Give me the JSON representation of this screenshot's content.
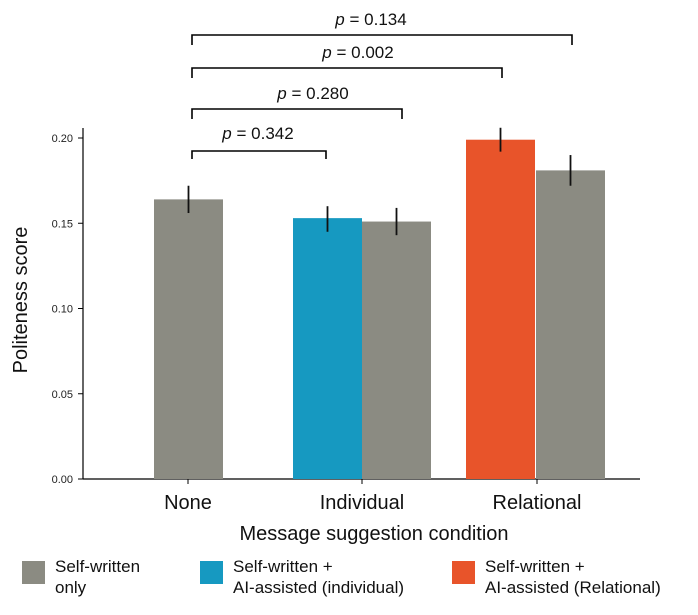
{
  "chart_data": {
    "type": "bar",
    "title": "",
    "xlabel": "Message suggestion condition",
    "ylabel": "Politeness score",
    "ylim": [
      0,
      0.205
    ],
    "yticks": [
      "0.00",
      "0.05",
      "0.10",
      "0.15",
      "0.20"
    ],
    "categories": [
      "None",
      "Individual",
      "Relational"
    ],
    "series": [
      {
        "name": "Self-written + AI-assisted (individual)",
        "category": "Individual",
        "value": 0.153,
        "error": [
          0.145,
          0.16
        ],
        "color": "#1699C1"
      },
      {
        "name": "Self-written + AI-assisted (Relational)",
        "category": "Relational",
        "value": 0.199,
        "error": [
          0.192,
          0.206
        ],
        "color": "#E8542A"
      },
      {
        "name": "Self-written only",
        "category": "None",
        "value": 0.164,
        "error": [
          0.156,
          0.172
        ],
        "color": "#8B8B82"
      },
      {
        "name": "Self-written only",
        "category": "Individual",
        "value": 0.151,
        "error": [
          0.143,
          0.159
        ],
        "color": "#8B8B82"
      },
      {
        "name": "Self-written only",
        "category": "Relational",
        "value": 0.181,
        "error": [
          0.172,
          0.19
        ],
        "color": "#8B8B82"
      }
    ],
    "comparisons": [
      {
        "label": "p = 0.342",
        "from": "None",
        "to": "Individual (AI-assisted)"
      },
      {
        "label": "p = 0.280",
        "from": "None",
        "to": "Individual (Self-written only)"
      },
      {
        "label": "p = 0.002",
        "from": "None",
        "to": "Relational (AI-assisted)"
      },
      {
        "label": "p = 0.134",
        "from": "None",
        "to": "Relational (Self-written only)"
      }
    ],
    "legend": [
      {
        "label": "Self-written\nonly",
        "color": "#8B8B82"
      },
      {
        "label": "Self-written +\nAI-assisted (individual)",
        "color": "#1699C1"
      },
      {
        "label": "Self-written +\nAI-assisted (Relational)",
        "color": "#E8542A"
      }
    ],
    "legend_position": "bottom"
  }
}
